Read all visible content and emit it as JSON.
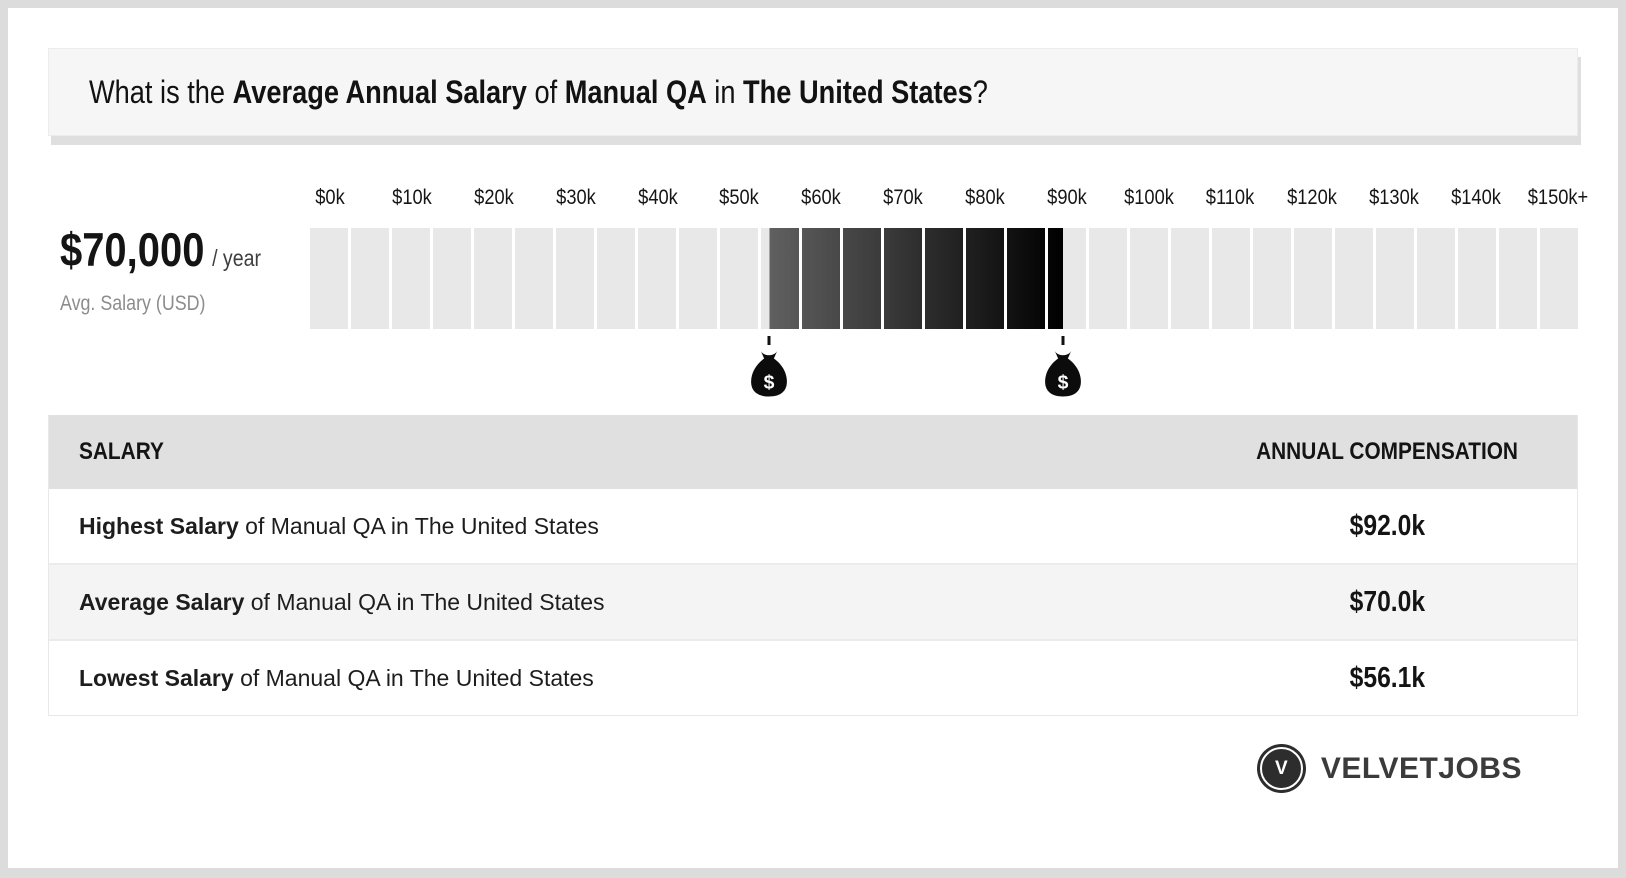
{
  "header": {
    "title_segments": [
      {
        "text": "What is the ",
        "bold": false
      },
      {
        "text": "Average Annual Salary",
        "bold": true
      },
      {
        "text": " of ",
        "bold": false
      },
      {
        "text": "Manual QA",
        "bold": true
      },
      {
        "text": " in ",
        "bold": false
      },
      {
        "text": "The United States",
        "bold": true
      },
      {
        "text": "?",
        "bold": false
      }
    ]
  },
  "summary": {
    "amount": "$70,000",
    "per": "/ year",
    "caption": "Avg. Salary (USD)"
  },
  "chart_data": {
    "type": "bar",
    "subtype": "salary-range-gauge",
    "x_axis": {
      "labels": [
        "$0k",
        "$10k",
        "$20k",
        "$30k",
        "$40k",
        "$50k",
        "$60k",
        "$70k",
        "$80k",
        "$90k",
        "$100k",
        "$110k",
        "$120k",
        "$130k",
        "$140k",
        "$150k+"
      ],
      "min_k": 0,
      "max_k": 155,
      "cell_step_k": 5,
      "num_cells": 31
    },
    "highlight": {
      "low_k": 56.1,
      "high_k": 92.0,
      "average_k": 70.0
    },
    "markers": [
      {
        "icon": "money-bag-icon",
        "value_k": 56.1,
        "meaning": "lowest salary"
      },
      {
        "icon": "money-bag-icon",
        "value_k": 92.0,
        "meaning": "highest salary"
      }
    ],
    "grid": false,
    "legend": false,
    "colors": {
      "cell": "#e8e8e8",
      "gradient_start": "#606060",
      "gradient_end": "#000000",
      "marker": "#0c0c0c"
    }
  },
  "table": {
    "headers": [
      "SALARY",
      "ANNUAL COMPENSATION"
    ],
    "rows": [
      {
        "label_bold": "Highest Salary",
        "label_rest": " of Manual QA in The United States",
        "value": "$92.0k"
      },
      {
        "label_bold": "Average Salary",
        "label_rest": " of Manual QA in The United States",
        "value": "$70.0k"
      },
      {
        "label_bold": "Lowest Salary",
        "label_rest": " of Manual QA in The United States",
        "value": "$56.1k"
      }
    ]
  },
  "footer": {
    "brand": "VELVETJOBS",
    "brand_initial": "V"
  }
}
